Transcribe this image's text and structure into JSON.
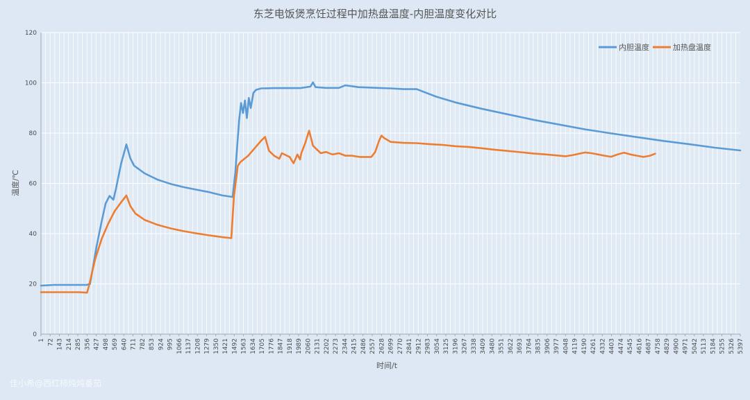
{
  "chart_data": {
    "type": "line",
    "title": "东芝电饭煲烹饪过程中加热盘温度-内胆温度变化对比",
    "xlabel": "时间/t",
    "ylabel": "温度/℃",
    "ylim": [
      0,
      120
    ],
    "yticks": [
      0,
      20,
      40,
      60,
      80,
      100,
      120
    ],
    "xlim": [
      1,
      5397
    ],
    "xticks": [
      1,
      72,
      143,
      214,
      285,
      356,
      427,
      498,
      569,
      640,
      711,
      782,
      853,
      924,
      995,
      1066,
      1137,
      1208,
      1279,
      1350,
      1421,
      1492,
      1563,
      1634,
      1705,
      1776,
      1847,
      1918,
      1989,
      2060,
      2131,
      2202,
      2273,
      2344,
      2415,
      2486,
      2557,
      2628,
      2699,
      2770,
      2841,
      2912,
      2983,
      3054,
      3125,
      3196,
      3267,
      3338,
      3409,
      3480,
      3551,
      3622,
      3693,
      3764,
      3835,
      3906,
      3977,
      4048,
      4119,
      4190,
      4261,
      4332,
      4403,
      4474,
      4545,
      4616,
      4687,
      4758,
      4829,
      4900,
      4971,
      5042,
      5113,
      5184,
      5255,
      5326,
      5397
    ],
    "grid": true,
    "legend": "top-right",
    "colors": {
      "内胆温度": "#5b9bd5",
      "加热盘温度": "#ed7d31"
    },
    "series": [
      {
        "name": "内胆温度",
        "points": [
          [
            1,
            19.3
          ],
          [
            100,
            19.6
          ],
          [
            200,
            19.6
          ],
          [
            356,
            19.6
          ],
          [
            380,
            20
          ],
          [
            430,
            35
          ],
          [
            470,
            45
          ],
          [
            500,
            52
          ],
          [
            530,
            55
          ],
          [
            560,
            53.5
          ],
          [
            580,
            58
          ],
          [
            620,
            68
          ],
          [
            660,
            75.5
          ],
          [
            690,
            70
          ],
          [
            720,
            67
          ],
          [
            800,
            64
          ],
          [
            900,
            61.5
          ],
          [
            1000,
            59.8
          ],
          [
            1100,
            58.5
          ],
          [
            1200,
            57.5
          ],
          [
            1300,
            56.5
          ],
          [
            1400,
            55.2
          ],
          [
            1480,
            54.6
          ],
          [
            1500,
            64
          ],
          [
            1530,
            85
          ],
          [
            1545,
            92
          ],
          [
            1560,
            88
          ],
          [
            1575,
            93
          ],
          [
            1590,
            86
          ],
          [
            1605,
            94
          ],
          [
            1620,
            90
          ],
          [
            1640,
            96
          ],
          [
            1660,
            97.2
          ],
          [
            1700,
            97.8
          ],
          [
            1800,
            97.9
          ],
          [
            2000,
            97.9
          ],
          [
            2080,
            98.5
          ],
          [
            2100,
            100.2
          ],
          [
            2120,
            98.3
          ],
          [
            2200,
            98
          ],
          [
            2300,
            98
          ],
          [
            2350,
            99
          ],
          [
            2450,
            98.3
          ],
          [
            2600,
            98
          ],
          [
            2700,
            97.8
          ],
          [
            2800,
            97.5
          ],
          [
            2900,
            97.5
          ],
          [
            2950,
            96.5
          ],
          [
            3050,
            94.5
          ],
          [
            3200,
            92.2
          ],
          [
            3400,
            89.7
          ],
          [
            3600,
            87.5
          ],
          [
            3800,
            85.3
          ],
          [
            4000,
            83.4
          ],
          [
            4200,
            81.5
          ],
          [
            4400,
            79.9
          ],
          [
            4600,
            78.4
          ],
          [
            4800,
            76.9
          ],
          [
            5000,
            75.6
          ],
          [
            5200,
            74.2
          ],
          [
            5397,
            73.1
          ]
        ]
      },
      {
        "name": "加热盘温度",
        "points": [
          [
            1,
            16.7
          ],
          [
            100,
            16.7
          ],
          [
            200,
            16.7
          ],
          [
            300,
            16.7
          ],
          [
            356,
            16.5
          ],
          [
            370,
            19
          ],
          [
            420,
            30
          ],
          [
            470,
            38
          ],
          [
            520,
            44
          ],
          [
            570,
            49
          ],
          [
            620,
            52.5
          ],
          [
            660,
            55.2
          ],
          [
            690,
            51
          ],
          [
            730,
            48
          ],
          [
            800,
            45.5
          ],
          [
            900,
            43.5
          ],
          [
            1000,
            42.1
          ],
          [
            1100,
            41
          ],
          [
            1200,
            40.1
          ],
          [
            1300,
            39.3
          ],
          [
            1400,
            38.6
          ],
          [
            1470,
            38.2
          ],
          [
            1490,
            55
          ],
          [
            1520,
            67
          ],
          [
            1540,
            68.5
          ],
          [
            1600,
            71
          ],
          [
            1650,
            74
          ],
          [
            1700,
            77
          ],
          [
            1730,
            78.5
          ],
          [
            1760,
            73
          ],
          [
            1800,
            71
          ],
          [
            1840,
            69.8
          ],
          [
            1860,
            72
          ],
          [
            1920,
            70.5
          ],
          [
            1950,
            68
          ],
          [
            1980,
            71.5
          ],
          [
            2000,
            69.5
          ],
          [
            2010,
            72
          ],
          [
            2040,
            76
          ],
          [
            2070,
            81
          ],
          [
            2100,
            75
          ],
          [
            2120,
            74
          ],
          [
            2160,
            72
          ],
          [
            2200,
            72.5
          ],
          [
            2250,
            71.5
          ],
          [
            2300,
            72
          ],
          [
            2350,
            71
          ],
          [
            2400,
            71
          ],
          [
            2460,
            70.5
          ],
          [
            2500,
            70.5
          ],
          [
            2550,
            70.5
          ],
          [
            2580,
            72.5
          ],
          [
            2610,
            77
          ],
          [
            2628,
            79
          ],
          [
            2650,
            78
          ],
          [
            2700,
            76.5
          ],
          [
            2800,
            76.1
          ],
          [
            2900,
            76
          ],
          [
            3000,
            75.6
          ],
          [
            3100,
            75.3
          ],
          [
            3200,
            74.8
          ],
          [
            3300,
            74.5
          ],
          [
            3400,
            74
          ],
          [
            3500,
            73.4
          ],
          [
            3600,
            72.9
          ],
          [
            3700,
            72.4
          ],
          [
            3800,
            71.9
          ],
          [
            3900,
            71.5
          ],
          [
            4000,
            71
          ],
          [
            4050,
            70.8
          ],
          [
            4100,
            71.2
          ],
          [
            4200,
            72.3
          ],
          [
            4250,
            72
          ],
          [
            4300,
            71.5
          ],
          [
            4350,
            71
          ],
          [
            4400,
            70.6
          ],
          [
            4450,
            71.5
          ],
          [
            4500,
            72.2
          ],
          [
            4550,
            71.5
          ],
          [
            4600,
            71
          ],
          [
            4650,
            70.5
          ],
          [
            4700,
            71
          ],
          [
            4740,
            71.8
          ]
        ]
      }
    ]
  },
  "watermark": "佳小希@西红柿炖炖番茄"
}
